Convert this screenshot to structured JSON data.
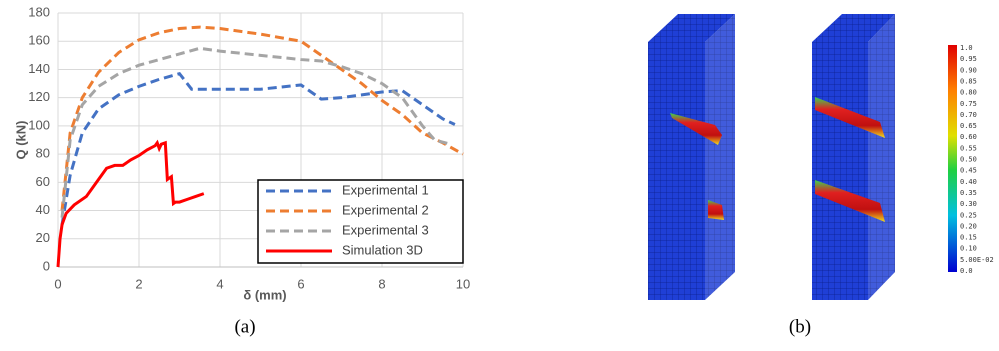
{
  "chart_data": {
    "type": "line",
    "xlabel": "δ (mm)",
    "ylabel": "Q (kN)",
    "xlim": [
      0,
      10
    ],
    "xticks": [
      0,
      2,
      4,
      6,
      8,
      10
    ],
    "ylim": [
      0,
      180
    ],
    "yticks": [
      0,
      20,
      40,
      60,
      80,
      100,
      120,
      140,
      160,
      180
    ],
    "grid": true,
    "legend": "lower right",
    "series": [
      {
        "name": "Experimental 1",
        "color": "#4472c4",
        "style": "dashed",
        "x": [
          0.1,
          0.3,
          0.6,
          1,
          1.5,
          2,
          2.5,
          3,
          3.3,
          4,
          5,
          6,
          6.5,
          7,
          7.5,
          8,
          8.5,
          9,
          9.5,
          9.8
        ],
        "values": [
          30,
          65,
          95,
          112,
          122,
          128,
          133,
          137,
          126,
          126,
          126,
          129,
          119,
          120,
          122,
          124,
          125,
          115,
          105,
          101
        ]
      },
      {
        "name": "Experimental 2",
        "color": "#ed7d31",
        "style": "dashed",
        "x": [
          0.1,
          0.3,
          0.6,
          1,
          1.5,
          2,
          2.5,
          3,
          3.5,
          4,
          5,
          6,
          6.5,
          7,
          7.5,
          8,
          8.5,
          9,
          9.5,
          10
        ],
        "values": [
          40,
          95,
          120,
          138,
          152,
          161,
          166,
          169,
          170,
          169,
          165,
          160,
          150,
          140,
          130,
          118,
          108,
          95,
          88,
          80
        ]
      },
      {
        "name": "Experimental 3",
        "color": "#a5a5a5",
        "style": "dashed",
        "x": [
          0.1,
          0.3,
          0.6,
          1,
          1.5,
          2,
          2.5,
          3,
          3.5,
          4,
          5,
          6,
          6.5,
          7,
          7.5,
          8,
          8.5,
          9,
          9.3,
          9.7
        ],
        "values": [
          35,
          90,
          115,
          128,
          137,
          143,
          147,
          151,
          155,
          153,
          150,
          147,
          146,
          142,
          137,
          130,
          120,
          100,
          90,
          87
        ]
      },
      {
        "name": "Simulation 3D",
        "color": "#ff0000",
        "style": "solid",
        "x": [
          0,
          0.05,
          0.1,
          0.2,
          0.4,
          0.7,
          1,
          1.2,
          1.4,
          1.6,
          1.8,
          2,
          2.2,
          2.4,
          2.45,
          2.5,
          2.55,
          2.65,
          2.7,
          2.8,
          2.85,
          2.9,
          3,
          3.2,
          3.4,
          3.6
        ],
        "values": [
          0,
          20,
          30,
          38,
          44,
          50,
          62,
          70,
          72,
          72,
          76,
          79,
          83,
          86,
          88,
          84,
          87,
          88,
          62,
          64,
          45,
          46,
          46,
          48,
          50,
          52
        ]
      }
    ]
  },
  "colorbar": {
    "labels": [
      "1.0",
      "0.95",
      "0.90",
      "0.85",
      "0.80",
      "0.75",
      "0.70",
      "0.65",
      "0.60",
      "0.55",
      "0.50",
      "0.45",
      "0.40",
      "0.35",
      "0.30",
      "0.25",
      "0.20",
      "0.15",
      "0.10",
      "5.00E-02",
      "0.0"
    ]
  },
  "captions": [
    "(a)",
    "(b)"
  ]
}
